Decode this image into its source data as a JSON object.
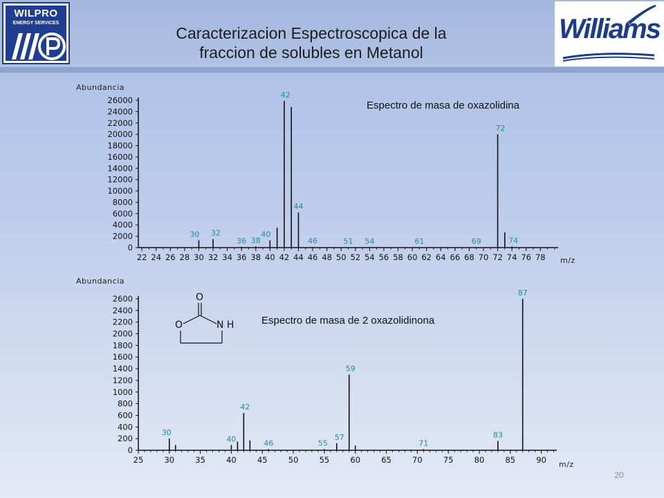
{
  "header": {
    "title_line1": "Caracterizacion Espectroscopica de la",
    "title_line2": "fraccion de solubles en Metanol",
    "logo_left": "WILPRO",
    "logo_left_sub": "ENERGY SERVICES",
    "logo_right": "Williams"
  },
  "slide_number": "20",
  "molecule": {
    "atom_o_top": "O",
    "atom_o_ring": "O",
    "atom_nh": "N H"
  },
  "chart_data": [
    {
      "type": "bar",
      "title": "Espectro de masa de oxazolidina",
      "ylabel": "Abundancia",
      "xlabel": "m/z",
      "xlim": [
        21.5,
        80.5
      ],
      "ylim": [
        0,
        26000
      ],
      "xticks": [
        22,
        24,
        26,
        28,
        30,
        32,
        34,
        36,
        38,
        40,
        42,
        44,
        46,
        48,
        50,
        52,
        54,
        56,
        58,
        60,
        62,
        64,
        66,
        68,
        70,
        72,
        74,
        76,
        78
      ],
      "yticks": [
        0,
        2000,
        4000,
        6000,
        8000,
        10000,
        12000,
        14000,
        16000,
        18000,
        20000,
        22000,
        24000,
        26000
      ],
      "peaks": [
        {
          "x": 30,
          "y": 1300,
          "label": "30"
        },
        {
          "x": 32,
          "y": 1500,
          "label": "32"
        },
        {
          "x": 36,
          "y": 150,
          "label": "36"
        },
        {
          "x": 38,
          "y": 200,
          "label": "38"
        },
        {
          "x": 40,
          "y": 1300,
          "label": "40"
        },
        {
          "x": 41,
          "y": 3500,
          "label": ""
        },
        {
          "x": 42,
          "y": 25900,
          "label": "42"
        },
        {
          "x": 43,
          "y": 24800,
          "label": ""
        },
        {
          "x": 44,
          "y": 6200,
          "label": "44"
        },
        {
          "x": 46,
          "y": 100,
          "label": "46"
        },
        {
          "x": 51,
          "y": 80,
          "label": "51"
        },
        {
          "x": 54,
          "y": 80,
          "label": "54"
        },
        {
          "x": 61,
          "y": 80,
          "label": "61"
        },
        {
          "x": 69,
          "y": 80,
          "label": "69"
        },
        {
          "x": 72,
          "y": 20000,
          "label": "72"
        },
        {
          "x": 73,
          "y": 2700,
          "label": ""
        },
        {
          "x": 74,
          "y": 200,
          "label": "74"
        }
      ]
    },
    {
      "type": "bar",
      "title": "Espectro de masa de 2 oxazolidinona",
      "ylabel": "Abundancia",
      "xlabel": "m/z",
      "xlim": [
        25,
        92.5
      ],
      "ylim": [
        0,
        2600
      ],
      "xticks": [
        25,
        30,
        35,
        40,
        45,
        50,
        55,
        60,
        65,
        70,
        75,
        80,
        85,
        90
      ],
      "yticks": [
        0,
        200,
        400,
        600,
        800,
        1000,
        1200,
        1400,
        1600,
        1800,
        2000,
        2200,
        2400,
        2600
      ],
      "peaks": [
        {
          "x": 30,
          "y": 200,
          "label": "30"
        },
        {
          "x": 31,
          "y": 90,
          "label": ""
        },
        {
          "x": 40,
          "y": 90,
          "label": "40"
        },
        {
          "x": 41,
          "y": 150,
          "label": ""
        },
        {
          "x": 42,
          "y": 640,
          "label": "42"
        },
        {
          "x": 43,
          "y": 170,
          "label": ""
        },
        {
          "x": 46,
          "y": 20,
          "label": "46"
        },
        {
          "x": 55,
          "y": 20,
          "label": "55"
        },
        {
          "x": 57,
          "y": 120,
          "label": "57"
        },
        {
          "x": 59,
          "y": 1300,
          "label": "59"
        },
        {
          "x": 60,
          "y": 80,
          "label": ""
        },
        {
          "x": 71,
          "y": 20,
          "label": "71"
        },
        {
          "x": 83,
          "y": 160,
          "label": "83"
        },
        {
          "x": 87,
          "y": 2600,
          "label": "87"
        }
      ]
    }
  ]
}
